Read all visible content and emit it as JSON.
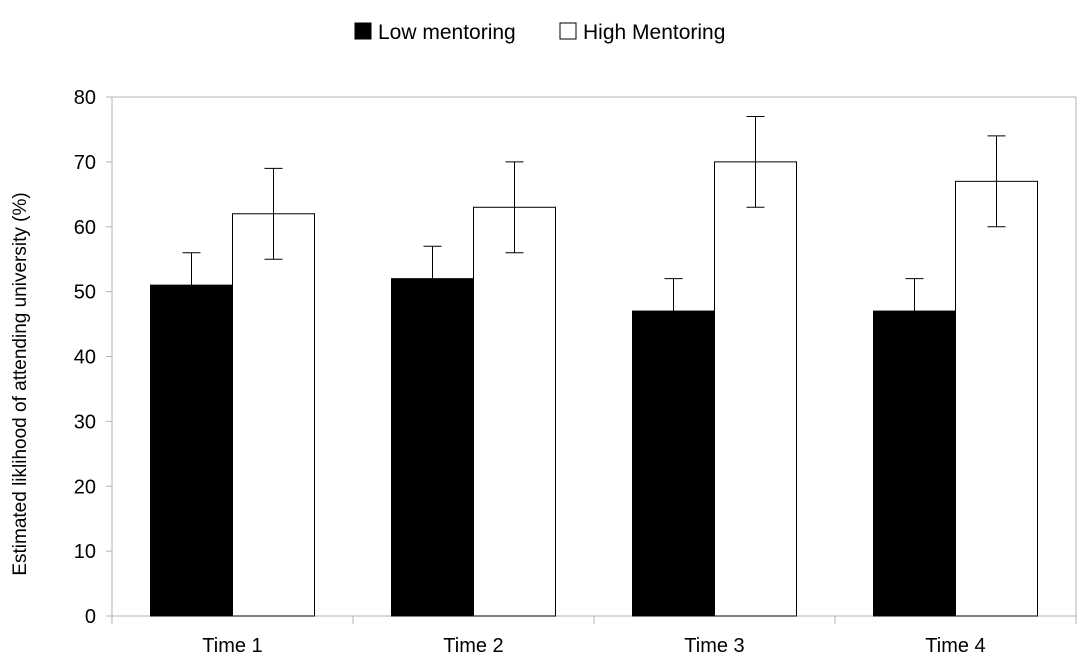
{
  "chart_data": {
    "type": "bar",
    "title": "",
    "xlabel": "",
    "ylabel": "Estimated liklihood of attending university (%)",
    "categories": [
      "Time 1",
      "Time 2",
      "Time 3",
      "Time 4"
    ],
    "ylim": [
      0,
      80
    ],
    "yticks": [
      0,
      10,
      20,
      30,
      40,
      50,
      60,
      70,
      80
    ],
    "grid": false,
    "legend_position": "top-center",
    "series": [
      {
        "name": "Low mentoring",
        "color": "#000000",
        "values": [
          51,
          52,
          47,
          47
        ],
        "error_low": [
          46,
          47,
          42,
          42
        ],
        "error_high": [
          56,
          57,
          52,
          52
        ]
      },
      {
        "name": "High Mentoring",
        "color": "#ffffff",
        "values": [
          62,
          63,
          70,
          67
        ],
        "error_low": [
          55,
          56,
          63,
          60
        ],
        "error_high": [
          69,
          70,
          77,
          74
        ]
      }
    ]
  }
}
